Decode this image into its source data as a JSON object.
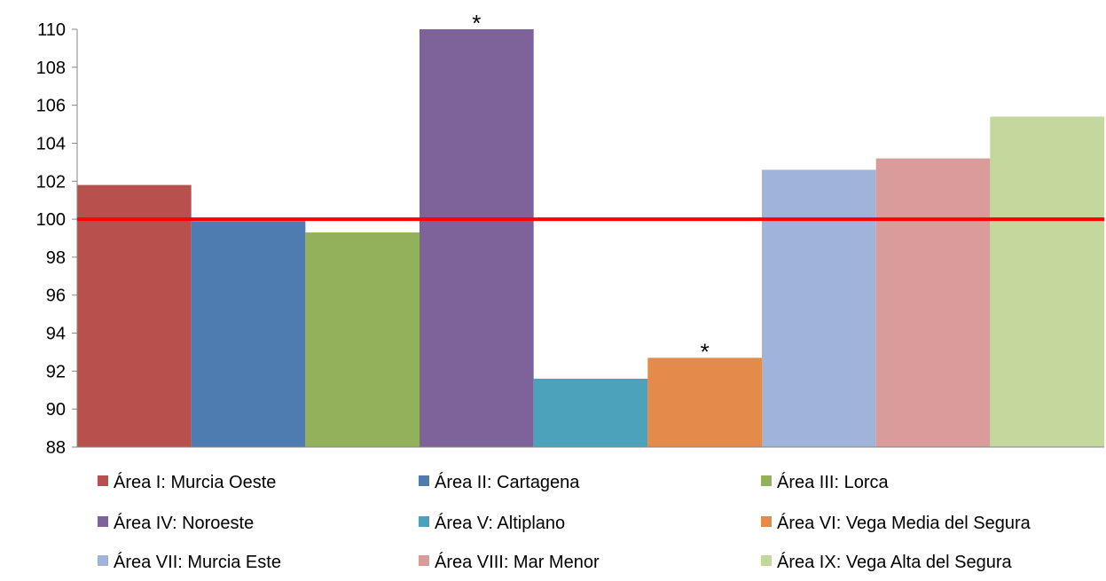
{
  "chart_data": {
    "type": "bar",
    "title": "",
    "xlabel": "",
    "ylabel": "",
    "ylim": [
      88,
      110
    ],
    "yticks": [
      88,
      90,
      92,
      94,
      96,
      98,
      100,
      102,
      104,
      106,
      108,
      110
    ],
    "grid": false,
    "legend_position": "bottom",
    "reference_line": {
      "value": 100,
      "color": "#ff0000"
    },
    "series": [
      {
        "name": "Área I: Murcia Oeste",
        "value": 101.8,
        "color": "#b8514e",
        "marker": ""
      },
      {
        "name": "Área II: Cartagena",
        "value": 99.9,
        "color": "#4e7cb1",
        "marker": ""
      },
      {
        "name": "Área III: Lorca",
        "value": 99.3,
        "color": "#93b05a",
        "marker": ""
      },
      {
        "name": "Área IV: Noroeste",
        "value": 110,
        "color": "#7d6399",
        "marker": "*"
      },
      {
        "name": "Área V: Altiplano",
        "value": 91.6,
        "color": "#4ba2ba",
        "marker": ""
      },
      {
        "name": "Área VI: Vega Media del Segura",
        "value": 92.7,
        "color": "#e38b4a",
        "marker": "*"
      },
      {
        "name": "Área VII: Murcia Este",
        "value": 102.6,
        "color": "#a0b4d9",
        "marker": ""
      },
      {
        "name": "Área VIII: Mar Menor",
        "value": 103.2,
        "color": "#da9b9b",
        "marker": ""
      },
      {
        "name": "Área IX: Vega Alta del Segura",
        "value": 105.4,
        "color": "#c4d79d",
        "marker": ""
      }
    ]
  }
}
